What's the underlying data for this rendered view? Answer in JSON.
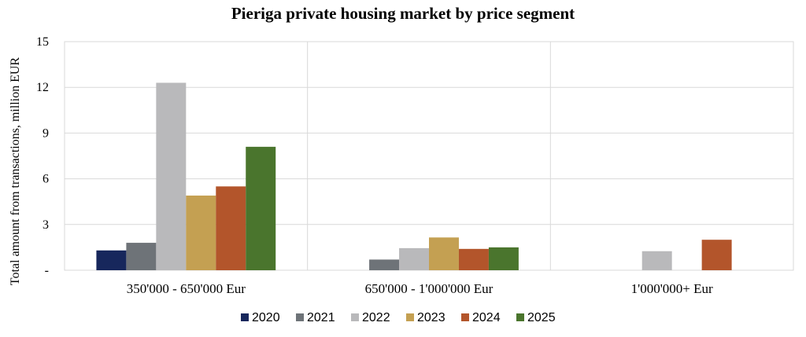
{
  "chart_data": {
    "type": "bar",
    "title": "Pieriga private housing market by price segment",
    "xlabel": "",
    "ylabel": "Total amount from transactions, million EUR",
    "ylim": [
      0,
      15
    ],
    "yticks": [
      0,
      3,
      6,
      9,
      12,
      15
    ],
    "ytick_labels": [
      "-",
      "3",
      "6",
      "9",
      "12",
      "15"
    ],
    "grid": true,
    "legend_position": "bottom",
    "categories": [
      "350'000 - 650'000 Eur",
      "650'000 - 1'000'000 Eur",
      "1'000'000+ Eur"
    ],
    "series": [
      {
        "name": "2020",
        "color": "#17275c",
        "values": [
          1.3,
          0,
          0
        ]
      },
      {
        "name": "2021",
        "color": "#6e7378",
        "values": [
          1.8,
          0.7,
          0
        ]
      },
      {
        "name": "2022",
        "color": "#b9b9bb",
        "values": [
          12.3,
          1.45,
          1.25
        ]
      },
      {
        "name": "2023",
        "color": "#c4a052",
        "values": [
          4.9,
          2.15,
          0
        ]
      },
      {
        "name": "2024",
        "color": "#b3552b",
        "values": [
          5.5,
          1.4,
          2.0
        ]
      },
      {
        "name": "2025",
        "color": "#4a752d",
        "values": [
          8.1,
          1.5,
          0
        ]
      }
    ]
  }
}
